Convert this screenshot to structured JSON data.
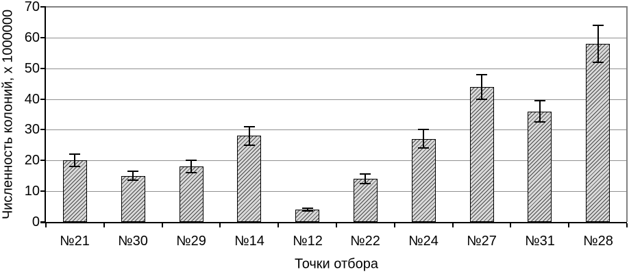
{
  "chart_data": {
    "type": "bar",
    "title": "",
    "xlabel": "Точки отбора",
    "ylabel": "Численность колоний, х 1000000",
    "categories": [
      "№21",
      "№30",
      "№29",
      "№14",
      "№12",
      "№22",
      "№24",
      "№27",
      "№31",
      "№28"
    ],
    "values": [
      20,
      15,
      18,
      28,
      4,
      14,
      27,
      44,
      36,
      58
    ],
    "error_bars": [
      2,
      1.5,
      2,
      3,
      0.5,
      1.5,
      3,
      4,
      3.5,
      6
    ],
    "ylim": [
      0,
      70
    ],
    "ytick_step": 10,
    "yticks": [
      "0",
      "10",
      "20",
      "30",
      "40",
      "50",
      "60",
      "70"
    ],
    "grid": true,
    "legend": "none",
    "style": {
      "bar_fill": "#d9d9d9",
      "hatch_pattern": "diagonal-up",
      "hatch_line_color": "#4a4a4a",
      "bar_border_color": "#000000",
      "gridline_color": "#909090",
      "plot_border_color": "#808080",
      "axis_color": "#000000",
      "error_bar_color": "#000000",
      "text_color": "#000000",
      "background": "#ffffff"
    }
  }
}
